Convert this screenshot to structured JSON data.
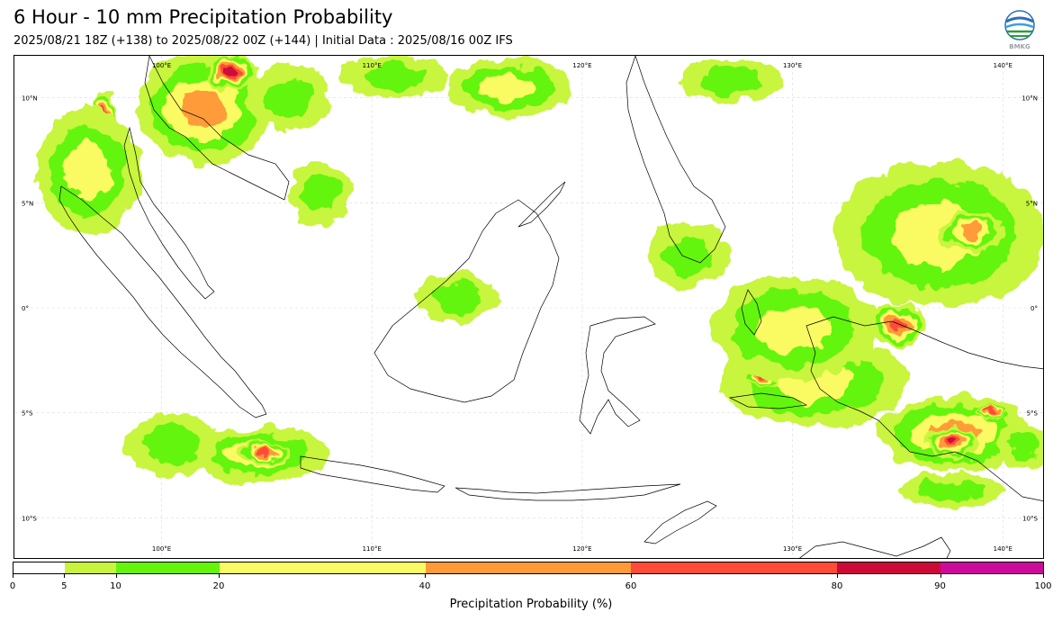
{
  "header": {
    "title": "6 Hour - 10 mm Precipitation Probability",
    "subtitle": "2025/08/21 18Z (+138) to 2025/08/22 00Z (+144) | Initial Data : 2025/08/16 00Z IFS",
    "logo_text": "BMKG"
  },
  "chart_data": {
    "type": "heatmap",
    "title": "6 Hour - 10 mm Precipitation Probability",
    "subtitle": "2025/08/21 18Z (+138) to 2025/08/22 00Z (+144) | Initial Data : 2025/08/16 00Z IFS",
    "xlim": [
      93,
      142
    ],
    "ylim": [
      -12,
      12
    ],
    "grid": true,
    "x_ticks": [
      {
        "value": 100,
        "label": "100°E"
      },
      {
        "value": 110,
        "label": "110°E"
      },
      {
        "value": 120,
        "label": "120°E"
      },
      {
        "value": 130,
        "label": "130°E"
      },
      {
        "value": 140,
        "label": "140°E"
      }
    ],
    "y_ticks": [
      {
        "value": 10,
        "label": "10°N"
      },
      {
        "value": 5,
        "label": "5°N"
      },
      {
        "value": 0,
        "label": "0°"
      },
      {
        "value": -5,
        "label": "5°S"
      },
      {
        "value": -10,
        "label": "10°S"
      }
    ],
    "colorbar": {
      "label": "Precipitation Probability (%)",
      "boundaries": [
        0,
        5,
        10,
        20,
        40,
        60,
        80,
        90,
        100
      ],
      "colors": [
        "#ffffff",
        "#c8f53c",
        "#64f50a",
        "#fafa64",
        "#ff9b37",
        "#ff4b37",
        "#cd0a37",
        "#cd0a9b"
      ]
    },
    "regions": [
      {
        "lon": 102,
        "lat": 9.5,
        "rx": 3.2,
        "ry": 2.6,
        "value": 45
      },
      {
        "lon": 103.3,
        "lat": 11.2,
        "rx": 1.2,
        "ry": 0.9,
        "value": 85
      },
      {
        "lon": 97.3,
        "lat": 9.2,
        "rx": 0.6,
        "ry": 1.1,
        "value": 70
      },
      {
        "lon": 96.5,
        "lat": 6.5,
        "rx": 2.5,
        "ry": 3.0,
        "value": 25
      },
      {
        "lon": 106,
        "lat": 10,
        "rx": 2.0,
        "ry": 1.5,
        "value": 15
      },
      {
        "lon": 111,
        "lat": 11,
        "rx": 2.5,
        "ry": 1.0,
        "value": 15
      },
      {
        "lon": 116.5,
        "lat": 10.5,
        "rx": 3.0,
        "ry": 1.4,
        "value": 25
      },
      {
        "lon": 127,
        "lat": 10.8,
        "rx": 2.4,
        "ry": 1.0,
        "value": 15
      },
      {
        "lon": 104.5,
        "lat": -7.0,
        "rx": 3.5,
        "ry": 1.3,
        "value": 35
      },
      {
        "lon": 104.9,
        "lat": -6.9,
        "rx": 1.2,
        "ry": 0.5,
        "value": 65
      },
      {
        "lon": 100.5,
        "lat": -6.5,
        "rx": 2.2,
        "ry": 1.5,
        "value": 15
      },
      {
        "lon": 131,
        "lat": -3.5,
        "rx": 4.5,
        "ry": 2.2,
        "value": 35
      },
      {
        "lon": 128.5,
        "lat": -3.3,
        "rx": 0.8,
        "ry": 0.6,
        "value": 70
      },
      {
        "lon": 130,
        "lat": -1.0,
        "rx": 4.0,
        "ry": 2.5,
        "value": 25
      },
      {
        "lon": 137,
        "lat": 3.5,
        "rx": 5.0,
        "ry": 3.5,
        "value": 30
      },
      {
        "lon": 138.5,
        "lat": 3.6,
        "rx": 1.5,
        "ry": 1.0,
        "value": 50
      },
      {
        "lon": 135,
        "lat": -0.8,
        "rx": 1.3,
        "ry": 1.0,
        "value": 65
      },
      {
        "lon": 137.7,
        "lat": -6.0,
        "rx": 3.6,
        "ry": 1.8,
        "value": 40
      },
      {
        "lon": 137.6,
        "lat": -6.4,
        "rx": 1.2,
        "ry": 0.8,
        "value": 85
      },
      {
        "lon": 139.5,
        "lat": -5.0,
        "rx": 0.7,
        "ry": 0.3,
        "value": 70
      },
      {
        "lon": 137.5,
        "lat": -8.7,
        "rx": 2.5,
        "ry": 0.8,
        "value": 15
      },
      {
        "lon": 107.5,
        "lat": 5.5,
        "rx": 1.5,
        "ry": 1.5,
        "value": 15
      },
      {
        "lon": 114,
        "lat": 0.5,
        "rx": 2.0,
        "ry": 1.2,
        "value": 15
      },
      {
        "lon": 125,
        "lat": 2.5,
        "rx": 2.0,
        "ry": 1.5,
        "value": 15
      },
      {
        "lon": 141,
        "lat": -6.5,
        "rx": 1.2,
        "ry": 1.2,
        "value": 15
      }
    ]
  }
}
